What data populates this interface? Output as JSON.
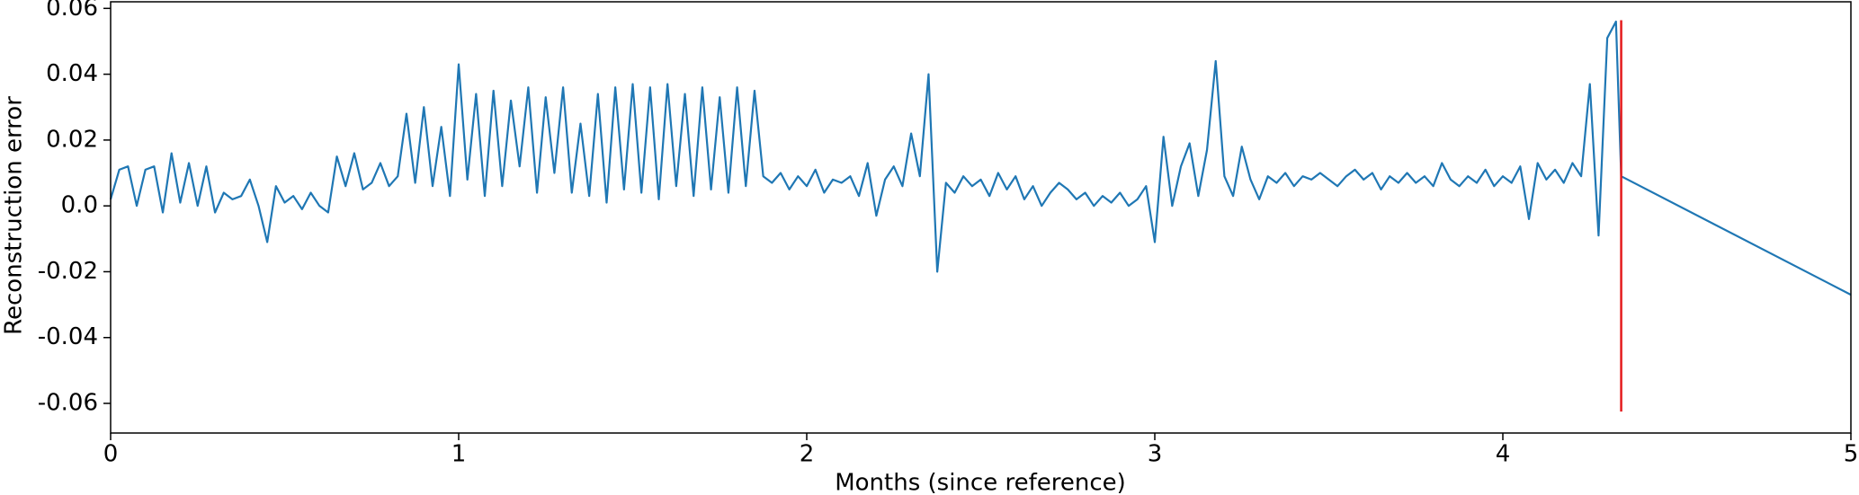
{
  "chart_data": {
    "type": "line",
    "xlabel": "Months (since reference)",
    "ylabel": "Reconstruction error",
    "xlim": [
      0,
      5
    ],
    "xticks": [
      0,
      1,
      2,
      3,
      4,
      5
    ],
    "ylim": [
      -0.069,
      0.062
    ],
    "yticks": [
      -0.06,
      -0.04,
      -0.02,
      {
        "value": 0,
        "label": "0.0"
      },
      0.02,
      0.04,
      0.06
    ],
    "x": [
      0,
      0.025,
      0.05,
      0.075,
      0.1,
      0.125,
      0.15,
      0.175,
      0.2,
      0.225,
      0.25,
      0.275,
      0.3,
      0.325,
      0.35,
      0.375,
      0.4,
      0.425,
      0.45,
      0.475,
      0.5,
      0.525,
      0.55,
      0.575,
      0.6,
      0.625,
      0.65,
      0.675,
      0.7,
      0.725,
      0.75,
      0.775,
      0.8,
      0.825,
      0.85,
      0.875,
      0.9,
      0.925,
      0.95,
      0.975,
      1.0,
      1.025,
      1.05,
      1.075,
      1.1,
      1.125,
      1.15,
      1.175,
      1.2,
      1.225,
      1.25,
      1.275,
      1.3,
      1.325,
      1.35,
      1.375,
      1.4,
      1.425,
      1.45,
      1.475,
      1.5,
      1.525,
      1.55,
      1.575,
      1.6,
      1.625,
      1.65,
      1.675,
      1.7,
      1.725,
      1.75,
      1.775,
      1.8,
      1.825,
      1.85,
      1.875,
      1.9,
      1.925,
      1.95,
      1.975,
      2.0,
      2.025,
      2.05,
      2.075,
      2.1,
      2.125,
      2.15,
      2.175,
      2.2,
      2.225,
      2.25,
      2.275,
      2.3,
      2.325,
      2.35,
      2.375,
      2.4,
      2.425,
      2.45,
      2.475,
      2.5,
      2.525,
      2.55,
      2.575,
      2.6,
      2.625,
      2.65,
      2.675,
      2.7,
      2.725,
      2.75,
      2.775,
      2.8,
      2.825,
      2.85,
      2.875,
      2.9,
      2.925,
      2.95,
      2.975,
      3.0,
      3.025,
      3.05,
      3.075,
      3.1,
      3.125,
      3.15,
      3.175,
      3.2,
      3.225,
      3.25,
      3.275,
      3.3,
      3.325,
      3.35,
      3.375,
      3.4,
      3.425,
      3.45,
      3.475,
      3.5,
      3.525,
      3.55,
      3.575,
      3.6,
      3.625,
      3.65,
      3.675,
      3.7,
      3.725,
      3.75,
      3.775,
      3.8,
      3.825,
      3.85,
      3.875,
      3.9,
      3.925,
      3.95,
      3.975,
      4.0,
      4.025,
      4.05,
      4.075,
      4.1,
      4.125,
      4.15,
      4.175,
      4.2,
      4.225,
      4.25,
      4.275,
      4.3,
      4.325,
      4.34,
      5.0
    ],
    "series": [
      {
        "color": "#1f77b4",
        "values": [
          0.002,
          0.011,
          0.012,
          0.0,
          0.011,
          0.012,
          -0.002,
          0.016,
          0.001,
          0.013,
          0.0,
          0.012,
          -0.002,
          0.004,
          0.002,
          0.003,
          0.008,
          0.0,
          -0.011,
          0.006,
          0.001,
          0.003,
          -0.001,
          0.004,
          0.0,
          -0.002,
          0.015,
          0.006,
          0.016,
          0.005,
          0.007,
          0.013,
          0.006,
          0.009,
          0.028,
          0.007,
          0.03,
          0.006,
          0.024,
          0.003,
          0.043,
          0.008,
          0.034,
          0.003,
          0.035,
          0.006,
          0.032,
          0.012,
          0.036,
          0.004,
          0.033,
          0.01,
          0.036,
          0.004,
          0.025,
          0.003,
          0.034,
          0.001,
          0.036,
          0.005,
          0.037,
          0.004,
          0.036,
          0.002,
          0.037,
          0.006,
          0.034,
          0.003,
          0.036,
          0.005,
          0.033,
          0.004,
          0.036,
          0.006,
          0.035,
          0.009,
          0.007,
          0.01,
          0.005,
          0.009,
          0.006,
          0.011,
          0.004,
          0.008,
          0.007,
          0.009,
          0.003,
          0.013,
          -0.003,
          0.008,
          0.012,
          0.006,
          0.022,
          0.009,
          0.04,
          -0.02,
          0.007,
          0.004,
          0.009,
          0.006,
          0.008,
          0.003,
          0.01,
          0.005,
          0.009,
          0.002,
          0.006,
          0.0,
          0.004,
          0.007,
          0.005,
          0.002,
          0.004,
          0.0,
          0.003,
          0.001,
          0.004,
          0.0,
          0.002,
          0.006,
          -0.011,
          0.021,
          0.0,
          0.012,
          0.019,
          0.003,
          0.017,
          0.044,
          0.009,
          0.003,
          0.018,
          0.008,
          0.002,
          0.009,
          0.007,
          0.01,
          0.006,
          0.009,
          0.008,
          0.01,
          0.008,
          0.006,
          0.009,
          0.011,
          0.008,
          0.01,
          0.005,
          0.009,
          0.007,
          0.01,
          0.007,
          0.009,
          0.006,
          0.013,
          0.008,
          0.006,
          0.009,
          0.007,
          0.011,
          0.006,
          0.009,
          0.007,
          0.012,
          -0.004,
          0.013,
          0.008,
          0.011,
          0.007,
          0.013,
          0.009,
          0.037,
          -0.009,
          0.051,
          0.056,
          0.009,
          -0.027
        ]
      }
    ],
    "vline": {
      "x": 4.34,
      "ymin": -0.0625,
      "ymax": 0.0564,
      "color": "#e41a1c"
    }
  }
}
